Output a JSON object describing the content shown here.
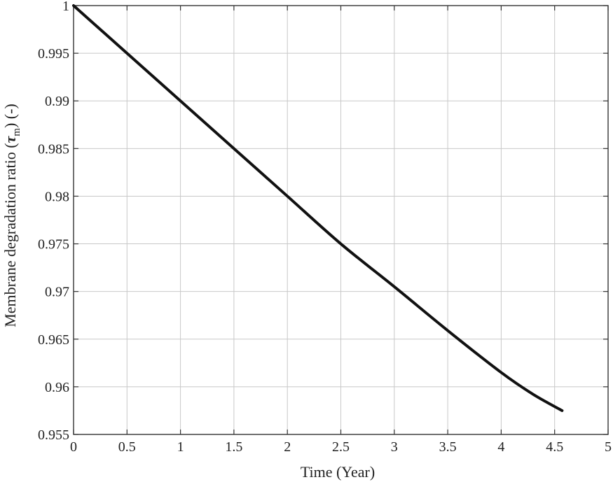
{
  "chart_data": {
    "type": "line",
    "title": "",
    "xlabel": "Time (Year)",
    "ylabel": {
      "prefix": "Membrane degradation ratio (",
      "symbol": "τ",
      "subscript": "m",
      "suffix": ")  (-)"
    },
    "xlim": [
      0,
      5
    ],
    "ylim": [
      0.955,
      1
    ],
    "x_ticks": [
      0,
      0.5,
      1,
      1.5,
      2,
      2.5,
      3,
      3.5,
      4,
      4.5,
      5
    ],
    "x_tick_labels": [
      "0",
      "0.5",
      "1",
      "1.5",
      "2",
      "2.5",
      "3",
      "3.5",
      "4",
      "4.5",
      "5"
    ],
    "y_ticks": [
      0.955,
      0.96,
      0.965,
      0.97,
      0.975,
      0.98,
      0.985,
      0.99,
      0.995,
      1
    ],
    "y_tick_labels": [
      "0.955",
      "0.96",
      "0.965",
      "0.97",
      "0.975",
      "0.98",
      "0.985",
      "0.99",
      "0.995",
      "1"
    ],
    "grid": true,
    "series": [
      {
        "color": "#111111",
        "x": [
          0,
          0.5,
          1.0,
          1.5,
          2.0,
          2.5,
          3.0,
          3.5,
          4.0,
          4.3,
          4.57
        ],
        "y": [
          1.0,
          0.995,
          0.99,
          0.985,
          0.98,
          0.975,
          0.9705,
          0.9659,
          0.9615,
          0.9592,
          0.9575
        ]
      }
    ]
  }
}
